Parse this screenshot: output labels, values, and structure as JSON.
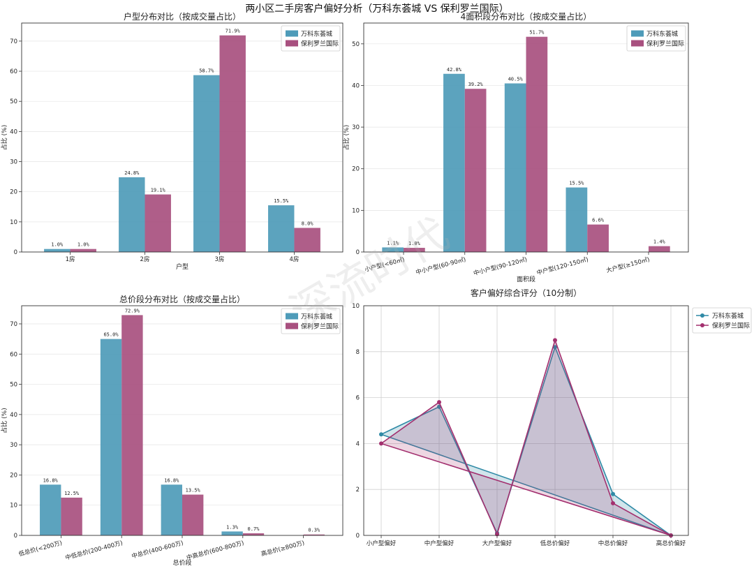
{
  "figure_title": "两小区二手房客户偏好分析（万科东荟城 VS 保利罗兰国际）",
  "watermark": "深流时代",
  "colors": {
    "series_a": "#4e9bb9",
    "series_b": "#a8507f",
    "line_a": "#2f8aa6",
    "line_b": "#a3306f",
    "grid": "#e4e4e4",
    "axis": "#333333",
    "text": "#222222"
  },
  "series_names": [
    "万科东荟城",
    "保利罗兰国际"
  ],
  "chart_data": [
    {
      "id": "layout",
      "type": "bar",
      "title": "户型分布对比（按成交量占比）",
      "xlabel": "户型",
      "ylabel": "占比 (%)",
      "ylim": [
        0,
        76
      ],
      "yticks": [
        0,
        10,
        20,
        30,
        40,
        50,
        60,
        70
      ],
      "grid": "horizontal",
      "legend": "top-right",
      "categories": [
        "1房",
        "2房",
        "3房",
        "4房"
      ],
      "series": [
        {
          "name": "万科东荟城",
          "values": [
            1.0,
            24.8,
            58.7,
            15.5
          ],
          "labels": [
            "1.0%",
            "24.8%",
            "58.7%",
            "15.5%"
          ]
        },
        {
          "name": "保利罗兰国际",
          "values": [
            1.0,
            19.1,
            71.9,
            8.0
          ],
          "labels": [
            "1.0%",
            "19.1%",
            "71.9%",
            "8.0%"
          ]
        }
      ]
    },
    {
      "id": "area",
      "type": "bar",
      "title": "4面积段分布对比（按成交量占比）",
      "xlabel": "面积段",
      "ylabel": "占比 (%)",
      "ylim": [
        0,
        55
      ],
      "yticks": [
        0,
        10,
        20,
        30,
        40,
        50
      ],
      "grid": "horizontal",
      "legend": "top-right",
      "categories": [
        "小户型(<60㎡)",
        "中小户型(60-90㎡)",
        "中小户型(90-120㎡)",
        "中户型(120-150㎡)",
        "大户型(≥150㎡)"
      ],
      "series": [
        {
          "name": "万科东荟城",
          "values": [
            1.1,
            42.8,
            40.5,
            15.5,
            0
          ],
          "labels": [
            "1.1%",
            "42.8%",
            "40.5%",
            "15.5%",
            ""
          ]
        },
        {
          "name": "保利罗兰国际",
          "values": [
            1.0,
            39.2,
            51.7,
            6.6,
            1.4
          ],
          "labels": [
            "1.0%",
            "39.2%",
            "51.7%",
            "6.6%",
            "1.4%"
          ]
        }
      ]
    },
    {
      "id": "price",
      "type": "bar",
      "title": "总价段分布对比（按成交量占比）",
      "xlabel": "总价段",
      "ylabel": "占比 (%)",
      "ylim": [
        0,
        76
      ],
      "yticks": [
        0,
        10,
        20,
        30,
        40,
        50,
        60,
        70
      ],
      "grid": "horizontal",
      "legend": "top-right",
      "categories": [
        "低总价(<200万)",
        "中低总价(200-400万)",
        "中总价(400-600万)",
        "中高总价(600-800万)",
        "高总价(≥800万)"
      ],
      "series": [
        {
          "name": "万科东荟城",
          "values": [
            16.8,
            65.0,
            16.8,
            1.3,
            0
          ],
          "labels": [
            "16.8%",
            "65.0%",
            "16.8%",
            "1.3%",
            ""
          ]
        },
        {
          "name": "保利罗兰国际",
          "values": [
            12.5,
            72.9,
            13.5,
            0.7,
            0.3
          ],
          "labels": [
            "12.5%",
            "72.9%",
            "13.5%",
            "0.7%",
            "0.3%"
          ]
        }
      ]
    },
    {
      "id": "score",
      "type": "line",
      "title": "客户偏好综合评分（10分制）",
      "ylim": [
        0,
        10
      ],
      "yticks": [
        0,
        2,
        4,
        6,
        8,
        10
      ],
      "grid": "both",
      "legend": "outside-right",
      "categories": [
        "小户型偏好",
        "中户型偏好",
        "大户型偏好",
        "低总价偏好",
        "中总价偏好",
        "高总价偏好"
      ],
      "series": [
        {
          "name": "万科东荟城",
          "values": [
            4.4,
            5.6,
            0.1,
            8.2,
            1.8,
            0.0
          ]
        },
        {
          "name": "保利罗兰国际",
          "values": [
            4.0,
            5.8,
            0.05,
            8.5,
            1.4,
            0.0
          ]
        }
      ]
    }
  ]
}
